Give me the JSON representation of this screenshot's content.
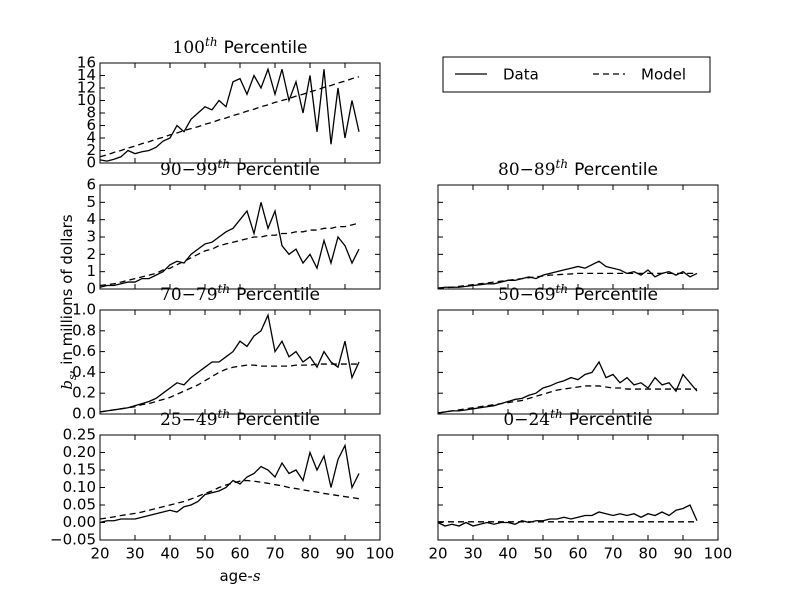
{
  "ylabel": {
    "main": "b",
    "sub": "s",
    "rest": ", in millions of dollars"
  },
  "xlabel": {
    "main": "age-",
    "var": "s"
  },
  "chart_data": [
    {
      "type": "line",
      "title": {
        "main": "100",
        "sup": "th",
        "rest": "Percentile"
      },
      "x": [
        20,
        22,
        24,
        26,
        28,
        30,
        32,
        34,
        36,
        38,
        40,
        42,
        44,
        46,
        48,
        50,
        52,
        54,
        56,
        58,
        60,
        62,
        64,
        66,
        68,
        70,
        72,
        74,
        76,
        78,
        80,
        82,
        84,
        86,
        88,
        90,
        92,
        94
      ],
      "xlim": [
        20,
        100
      ],
      "xticks": [
        20,
        30,
        40,
        50,
        60,
        70,
        80,
        90,
        100
      ],
      "xticklabels": false,
      "ylim": [
        0,
        16
      ],
      "yticks": [
        0,
        2,
        4,
        6,
        8,
        10,
        12,
        14,
        16
      ],
      "yticklabels": true,
      "series": [
        {
          "name": "Data",
          "color": "#000000",
          "style": "solid",
          "values": [
            0.5,
            0.3,
            0.6,
            1,
            2,
            1.5,
            1.8,
            2,
            2.5,
            3.5,
            4,
            6,
            5,
            7,
            8,
            9,
            8.5,
            10,
            9,
            13,
            13.5,
            11,
            14,
            12,
            15,
            11,
            15,
            10,
            13,
            8,
            14,
            5,
            15,
            3,
            12,
            4,
            10,
            5
          ]
        },
        {
          "name": "Model",
          "color": "#000000",
          "style": "dashed",
          "values": [
            1.0,
            1.3,
            1.7,
            2.0,
            2.4,
            2.7,
            3.1,
            3.4,
            3.8,
            4.1,
            4.5,
            4.8,
            5.2,
            5.5,
            5.8,
            6.2,
            6.5,
            6.9,
            7.2,
            7.6,
            7.9,
            8.3,
            8.6,
            9.0,
            9.3,
            9.7,
            10.0,
            10.3,
            10.7,
            11.0,
            11.4,
            11.7,
            12.1,
            12.4,
            12.8,
            13.1,
            13.5,
            13.8
          ]
        }
      ]
    },
    {
      "type": "line",
      "title": {
        "main": "90−99",
        "sup": "th",
        "rest": "Percentile"
      },
      "x": [
        20,
        22,
        24,
        26,
        28,
        30,
        32,
        34,
        36,
        38,
        40,
        42,
        44,
        46,
        48,
        50,
        52,
        54,
        56,
        58,
        60,
        62,
        64,
        66,
        68,
        70,
        72,
        74,
        76,
        78,
        80,
        82,
        84,
        86,
        88,
        90,
        92,
        94
      ],
      "xlim": [
        20,
        100
      ],
      "xticks": [
        20,
        30,
        40,
        50,
        60,
        70,
        80,
        90,
        100
      ],
      "xticklabels": false,
      "ylim": [
        0,
        6
      ],
      "yticks": [
        0,
        1,
        2,
        3,
        4,
        5,
        6
      ],
      "yticklabels": true,
      "series": [
        {
          "color": "#000000",
          "style": "solid",
          "values": [
            0.1,
            0.2,
            0.2,
            0.3,
            0.4,
            0.4,
            0.6,
            0.6,
            0.8,
            1.0,
            1.4,
            1.6,
            1.5,
            2.0,
            2.3,
            2.6,
            2.7,
            3.0,
            3.3,
            3.5,
            4.0,
            4.5,
            3.2,
            5.0,
            3.5,
            4.5,
            2.5,
            2.0,
            2.3,
            1.5,
            2.0,
            1.2,
            2.8,
            1.5,
            3.0,
            2.5,
            1.5,
            2.3
          ]
        },
        {
          "color": "#000000",
          "style": "dashed",
          "values": [
            0.2,
            0.25,
            0.3,
            0.4,
            0.5,
            0.6,
            0.7,
            0.8,
            0.9,
            1.1,
            1.2,
            1.4,
            1.6,
            1.8,
            2.0,
            2.2,
            2.3,
            2.5,
            2.6,
            2.7,
            2.8,
            2.9,
            3.0,
            3.0,
            3.1,
            3.1,
            3.2,
            3.2,
            3.3,
            3.3,
            3.4,
            3.4,
            3.5,
            3.5,
            3.6,
            3.6,
            3.7,
            3.8
          ]
        }
      ]
    },
    {
      "type": "line",
      "title": {
        "main": "80−89",
        "sup": "th",
        "rest": "Percentile"
      },
      "x": [
        20,
        22,
        24,
        26,
        28,
        30,
        32,
        34,
        36,
        38,
        40,
        42,
        44,
        46,
        48,
        50,
        52,
        54,
        56,
        58,
        60,
        62,
        64,
        66,
        68,
        70,
        72,
        74,
        76,
        78,
        80,
        82,
        84,
        86,
        88,
        90,
        92,
        94
      ],
      "xlim": [
        20,
        100
      ],
      "xticks": [
        20,
        30,
        40,
        50,
        60,
        70,
        80,
        90,
        100
      ],
      "xticklabels": false,
      "ylim": [
        0,
        6
      ],
      "yticks": [
        0,
        1,
        2,
        3,
        4,
        5,
        6
      ],
      "yticklabels": false,
      "series": [
        {
          "color": "#000000",
          "style": "solid",
          "values": [
            0.05,
            0.1,
            0.1,
            0.1,
            0.15,
            0.2,
            0.25,
            0.3,
            0.3,
            0.4,
            0.5,
            0.5,
            0.6,
            0.7,
            0.6,
            0.8,
            0.9,
            1.0,
            1.1,
            1.2,
            1.3,
            1.2,
            1.4,
            1.6,
            1.3,
            1.2,
            1.1,
            0.9,
            1.0,
            0.8,
            1.1,
            0.7,
            0.9,
            1.0,
            0.8,
            1.0,
            0.7,
            0.9
          ]
        },
        {
          "color": "#000000",
          "style": "dashed",
          "values": [
            0.05,
            0.08,
            0.1,
            0.15,
            0.2,
            0.25,
            0.3,
            0.35,
            0.4,
            0.45,
            0.5,
            0.55,
            0.6,
            0.65,
            0.7,
            0.75,
            0.8,
            0.82,
            0.85,
            0.87,
            0.9,
            0.9,
            0.9,
            0.9,
            0.9,
            0.9,
            0.9,
            0.9,
            0.9,
            0.9,
            0.9,
            0.9,
            0.9,
            0.9,
            0.9,
            0.9,
            0.9,
            0.9
          ]
        }
      ]
    },
    {
      "type": "line",
      "title": {
        "main": "70−79",
        "sup": "th",
        "rest": "Percentile"
      },
      "x": [
        20,
        22,
        24,
        26,
        28,
        30,
        32,
        34,
        36,
        38,
        40,
        42,
        44,
        46,
        48,
        50,
        52,
        54,
        56,
        58,
        60,
        62,
        64,
        66,
        68,
        70,
        72,
        74,
        76,
        78,
        80,
        82,
        84,
        86,
        88,
        90,
        92,
        94
      ],
      "xlim": [
        20,
        100
      ],
      "xticks": [
        20,
        30,
        40,
        50,
        60,
        70,
        80,
        90,
        100
      ],
      "xticklabels": false,
      "ylim": [
        0,
        1
      ],
      "yticks": [
        {
          "value": 0,
          "label": "0.0"
        },
        0.2,
        0.4,
        0.6,
        0.8,
        {
          "value": 1,
          "label": "1.0"
        }
      ],
      "yticklabels": true,
      "series": [
        {
          "color": "#000000",
          "style": "solid",
          "values": [
            0.02,
            0.03,
            0.04,
            0.05,
            0.06,
            0.08,
            0.1,
            0.12,
            0.15,
            0.2,
            0.25,
            0.3,
            0.28,
            0.35,
            0.4,
            0.45,
            0.5,
            0.5,
            0.55,
            0.6,
            0.7,
            0.65,
            0.75,
            0.8,
            0.95,
            0.6,
            0.7,
            0.55,
            0.6,
            0.5,
            0.55,
            0.45,
            0.6,
            0.5,
            0.45,
            0.7,
            0.35,
            0.5
          ]
        },
        {
          "color": "#000000",
          "style": "dashed",
          "values": [
            0.02,
            0.03,
            0.04,
            0.05,
            0.06,
            0.07,
            0.09,
            0.1,
            0.12,
            0.14,
            0.16,
            0.19,
            0.22,
            0.25,
            0.28,
            0.32,
            0.36,
            0.4,
            0.43,
            0.45,
            0.46,
            0.47,
            0.47,
            0.46,
            0.46,
            0.46,
            0.46,
            0.46,
            0.47,
            0.47,
            0.47,
            0.48,
            0.48,
            0.48,
            0.48,
            0.48,
            0.48,
            0.48
          ]
        }
      ]
    },
    {
      "type": "line",
      "title": {
        "main": "50−69",
        "sup": "th",
        "rest": "Percentile"
      },
      "x": [
        20,
        22,
        24,
        26,
        28,
        30,
        32,
        34,
        36,
        38,
        40,
        42,
        44,
        46,
        48,
        50,
        52,
        54,
        56,
        58,
        60,
        62,
        64,
        66,
        68,
        70,
        72,
        74,
        76,
        78,
        80,
        82,
        84,
        86,
        88,
        90,
        92,
        94
      ],
      "xlim": [
        20,
        100
      ],
      "xticks": [
        20,
        30,
        40,
        50,
        60,
        70,
        80,
        90,
        100
      ],
      "xticklabels": false,
      "ylim": [
        0,
        1
      ],
      "yticks": [
        0,
        0.2,
        0.4,
        0.6,
        0.8,
        1
      ],
      "yticklabels": false,
      "series": [
        {
          "color": "#000000",
          "style": "solid",
          "values": [
            0.01,
            0.02,
            0.03,
            0.03,
            0.04,
            0.05,
            0.06,
            0.07,
            0.08,
            0.1,
            0.12,
            0.14,
            0.15,
            0.18,
            0.2,
            0.25,
            0.27,
            0.3,
            0.32,
            0.35,
            0.33,
            0.38,
            0.4,
            0.5,
            0.35,
            0.38,
            0.3,
            0.35,
            0.28,
            0.3,
            0.25,
            0.35,
            0.28,
            0.3,
            0.22,
            0.38,
            0.3,
            0.22
          ]
        },
        {
          "color": "#000000",
          "style": "dashed",
          "values": [
            0.01,
            0.02,
            0.03,
            0.04,
            0.05,
            0.06,
            0.07,
            0.08,
            0.09,
            0.1,
            0.11,
            0.12,
            0.13,
            0.15,
            0.17,
            0.19,
            0.21,
            0.23,
            0.24,
            0.25,
            0.26,
            0.27,
            0.27,
            0.27,
            0.26,
            0.25,
            0.25,
            0.24,
            0.24,
            0.24,
            0.24,
            0.24,
            0.24,
            0.24,
            0.24,
            0.24,
            0.24,
            0.24
          ]
        }
      ]
    },
    {
      "type": "line",
      "title": {
        "main": "25−49",
        "sup": "th",
        "rest": "Percentile"
      },
      "x": [
        20,
        22,
        24,
        26,
        28,
        30,
        32,
        34,
        36,
        38,
        40,
        42,
        44,
        46,
        48,
        50,
        52,
        54,
        56,
        58,
        60,
        62,
        64,
        66,
        68,
        70,
        72,
        74,
        76,
        78,
        80,
        82,
        84,
        86,
        88,
        90,
        92,
        94
      ],
      "xlim": [
        20,
        100
      ],
      "xticks": [
        20,
        30,
        40,
        50,
        60,
        70,
        80,
        90,
        100
      ],
      "xticklabels": true,
      "ylim": [
        -0.05,
        0.25
      ],
      "yticks": [
        {
          "value": -0.05,
          "label": "−0.05"
        },
        {
          "value": 0,
          "label": "0.00"
        },
        {
          "value": 0.05,
          "label": "0.05"
        },
        {
          "value": 0.1,
          "label": "0.10"
        },
        {
          "value": 0.15,
          "label": "0.15"
        },
        {
          "value": 0.2,
          "label": "0.20"
        },
        {
          "value": 0.25,
          "label": "0.25"
        }
      ],
      "yticklabels": true,
      "series": [
        {
          "color": "#000000",
          "style": "solid",
          "values": [
            0.0,
            0.005,
            0.005,
            0.01,
            0.01,
            0.01,
            0.015,
            0.02,
            0.025,
            0.03,
            0.035,
            0.03,
            0.045,
            0.05,
            0.06,
            0.08,
            0.085,
            0.09,
            0.1,
            0.12,
            0.11,
            0.13,
            0.14,
            0.16,
            0.15,
            0.13,
            0.17,
            0.14,
            0.15,
            0.12,
            0.2,
            0.15,
            0.19,
            0.1,
            0.18,
            0.22,
            0.1,
            0.14
          ]
        },
        {
          "color": "#000000",
          "style": "dashed",
          "values": [
            0.01,
            0.013,
            0.016,
            0.02,
            0.023,
            0.026,
            0.03,
            0.035,
            0.04,
            0.045,
            0.05,
            0.055,
            0.06,
            0.067,
            0.075,
            0.083,
            0.09,
            0.1,
            0.107,
            0.113,
            0.118,
            0.12,
            0.118,
            0.115,
            0.112,
            0.108,
            0.105,
            0.1,
            0.097,
            0.093,
            0.09,
            0.087,
            0.083,
            0.08,
            0.077,
            0.074,
            0.071,
            0.068
          ]
        }
      ]
    },
    {
      "type": "line",
      "title": {
        "main": "0−24",
        "sup": "th",
        "rest": "Percentile"
      },
      "x": [
        20,
        22,
        24,
        26,
        28,
        30,
        32,
        34,
        36,
        38,
        40,
        42,
        44,
        46,
        48,
        50,
        52,
        54,
        56,
        58,
        60,
        62,
        64,
        66,
        68,
        70,
        72,
        74,
        76,
        78,
        80,
        82,
        84,
        86,
        88,
        90,
        92,
        94
      ],
      "xlim": [
        20,
        100
      ],
      "xticks": [
        20,
        30,
        40,
        50,
        60,
        70,
        80,
        90,
        100
      ],
      "xticklabels": true,
      "ylim": [
        -0.05,
        0.25
      ],
      "yticks": [
        -0.05,
        0,
        0.05,
        0.1,
        0.15,
        0.2,
        0.25
      ],
      "yticklabels": false,
      "series": [
        {
          "color": "#000000",
          "style": "solid",
          "values": [
            0.0,
            -0.01,
            -0.005,
            -0.01,
            0.0,
            -0.01,
            -0.005,
            0.0,
            -0.005,
            0.0,
            0.0,
            -0.005,
            0.005,
            0.0,
            0.005,
            0.005,
            0.01,
            0.01,
            0.015,
            0.01,
            0.015,
            0.02,
            0.02,
            0.03,
            0.025,
            0.02,
            0.025,
            0.02,
            0.025,
            0.015,
            0.025,
            0.02,
            0.03,
            0.02,
            0.035,
            0.04,
            0.05,
            0.005
          ]
        },
        {
          "color": "#000000",
          "style": "dashed",
          "values": [
            0.002,
            0.002,
            0.002,
            0.002,
            0.002,
            0.002,
            0.002,
            0.002,
            0.002,
            0.002,
            0.002,
            0.002,
            0.002,
            0.002,
            0.002,
            0.002,
            0.002,
            0.002,
            0.002,
            0.002,
            0.002,
            0.002,
            0.002,
            0.002,
            0.002,
            0.002,
            0.002,
            0.002,
            0.002,
            0.002,
            0.002,
            0.002,
            0.002,
            0.002,
            0.002,
            0.002,
            0.002,
            0.002
          ]
        }
      ]
    }
  ]
}
